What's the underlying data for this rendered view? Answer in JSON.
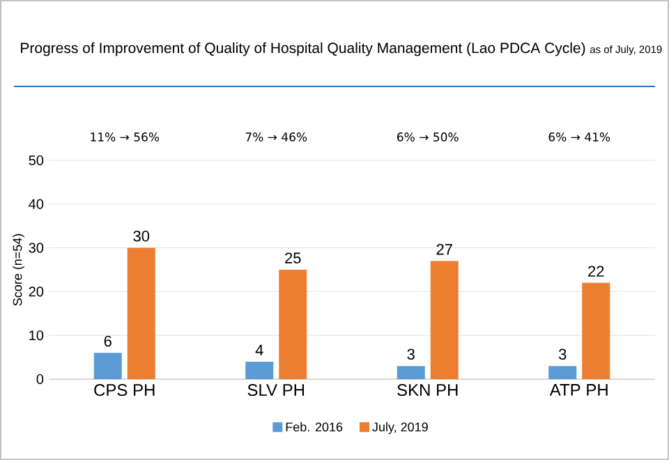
{
  "chart_data": {
    "type": "bar",
    "title": "Progress of Improvement of Quality of Hospital Quality Management (Lao PDCA Cycle)",
    "subtitle": "as of July, 2019",
    "ylabel": "Score (n=54)",
    "categories": [
      "CPS PH",
      "SLV PH",
      "SKN PH",
      "ATP PH"
    ],
    "series": [
      {
        "name": "Feb. 2016",
        "color": "#5b9bd5",
        "values": [
          6,
          4,
          3,
          3
        ]
      },
      {
        "name": "July, 2019",
        "color": "#ed7d31",
        "values": [
          30,
          25,
          27,
          22
        ]
      }
    ],
    "annotations": [
      "11% → 56%",
      "7% → 46%",
      "6% → 50%",
      "6% → 41%"
    ],
    "ylim": [
      0,
      50
    ],
    "yticks": [
      0,
      10,
      20,
      30,
      40,
      50
    ],
    "grid": "y",
    "legend": "bottom",
    "data_labels": true
  }
}
